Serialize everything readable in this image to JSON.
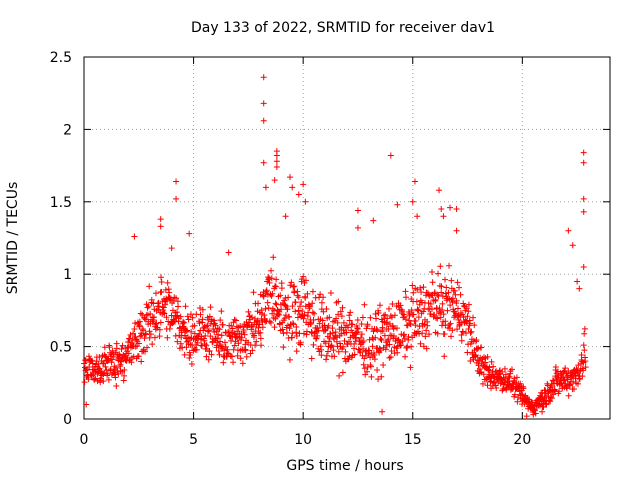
{
  "chart_data": {
    "type": "scatter",
    "title": "Day 133 of 2022, SRMTID for receiver dav1",
    "xlabel": "GPS time / hours",
    "ylabel": "SRMTID / TECUs",
    "xlim": [
      0,
      24
    ],
    "ylim": [
      0,
      2.5
    ],
    "xticks": [
      "0",
      "5",
      "10",
      "15",
      "20"
    ],
    "yticks": [
      "0",
      "0.5",
      "1",
      "1.5",
      "2",
      "2.5"
    ],
    "grid": true,
    "marker": "+",
    "series": [
      {
        "name": "dav1",
        "color": "#ff0000",
        "profile": {
          "hours": [
            0,
            0.5,
            1,
            1.5,
            2,
            2.5,
            3,
            3.5,
            4,
            4.5,
            5,
            5.5,
            6,
            6.5,
            7,
            7.5,
            8,
            8.5,
            9,
            9.5,
            10,
            10.5,
            11,
            11.5,
            12,
            12.5,
            13,
            13.5,
            14,
            14.5,
            15,
            15.5,
            16,
            16.5,
            17,
            17.5,
            18,
            18.5,
            19,
            19.5,
            20,
            20.5,
            21,
            21.5,
            22,
            22.5,
            23
          ],
          "median": [
            0.33,
            0.32,
            0.37,
            0.4,
            0.45,
            0.55,
            0.68,
            0.78,
            0.72,
            0.62,
            0.58,
            0.6,
            0.55,
            0.52,
            0.55,
            0.6,
            0.65,
            0.85,
            0.75,
            0.7,
            0.8,
            0.65,
            0.62,
            0.55,
            0.6,
            0.55,
            0.5,
            0.55,
            0.6,
            0.6,
            0.7,
            0.72,
            0.8,
            0.75,
            0.78,
            0.65,
            0.4,
            0.3,
            0.28,
            0.25,
            0.15,
            0.08,
            0.15,
            0.25,
            0.28,
            0.3,
            0.55
          ],
          "spread": [
            0.15,
            0.15,
            0.18,
            0.2,
            0.22,
            0.28,
            0.3,
            0.32,
            0.3,
            0.28,
            0.25,
            0.25,
            0.25,
            0.25,
            0.25,
            0.28,
            0.3,
            0.4,
            0.35,
            0.35,
            0.38,
            0.35,
            0.35,
            0.32,
            0.35,
            0.32,
            0.3,
            0.32,
            0.35,
            0.32,
            0.35,
            0.35,
            0.35,
            0.35,
            0.32,
            0.3,
            0.2,
            0.15,
            0.12,
            0.12,
            0.1,
            0.07,
            0.12,
            0.15,
            0.15,
            0.15,
            0.3
          ]
        },
        "points": [
          [
            8.2,
            2.36
          ],
          [
            8.2,
            2.18
          ],
          [
            8.2,
            2.06
          ],
          [
            8.8,
            1.85
          ],
          [
            8.8,
            1.82
          ],
          [
            8.8,
            1.78
          ],
          [
            8.8,
            1.74
          ],
          [
            8.7,
            1.65
          ],
          [
            8.2,
            1.77
          ],
          [
            8.3,
            1.6
          ],
          [
            9.4,
            1.67
          ],
          [
            9.5,
            1.6
          ],
          [
            9.8,
            1.55
          ],
          [
            10.0,
            1.62
          ],
          [
            10.1,
            1.5
          ],
          [
            9.2,
            1.4
          ],
          [
            4.2,
            1.64
          ],
          [
            4.2,
            1.52
          ],
          [
            3.5,
            1.38
          ],
          [
            3.5,
            1.33
          ],
          [
            4.0,
            1.18
          ],
          [
            4.8,
            1.28
          ],
          [
            2.3,
            1.26
          ],
          [
            6.6,
            1.15
          ],
          [
            12.5,
            1.44
          ],
          [
            12.5,
            1.32
          ],
          [
            13.2,
            1.37
          ],
          [
            14.0,
            1.82
          ],
          [
            14.3,
            1.48
          ],
          [
            15.1,
            1.64
          ],
          [
            15.0,
            1.5
          ],
          [
            15.2,
            1.4
          ],
          [
            16.2,
            1.58
          ],
          [
            16.3,
            1.45
          ],
          [
            16.4,
            1.4
          ],
          [
            16.7,
            1.46
          ],
          [
            17.0,
            1.45
          ],
          [
            17.0,
            1.3
          ],
          [
            22.1,
            1.3
          ],
          [
            22.3,
            1.2
          ],
          [
            22.8,
            1.84
          ],
          [
            22.8,
            1.77
          ],
          [
            22.8,
            1.52
          ],
          [
            22.8,
            1.43
          ],
          [
            22.8,
            1.05
          ],
          [
            22.5,
            0.95
          ],
          [
            22.6,
            0.9
          ],
          [
            13.6,
            0.05
          ],
          [
            0.1,
            0.1
          ],
          [
            20.2,
            0.02
          ],
          [
            20.5,
            0.03
          ],
          [
            20.9,
            0.05
          ]
        ]
      }
    ]
  }
}
